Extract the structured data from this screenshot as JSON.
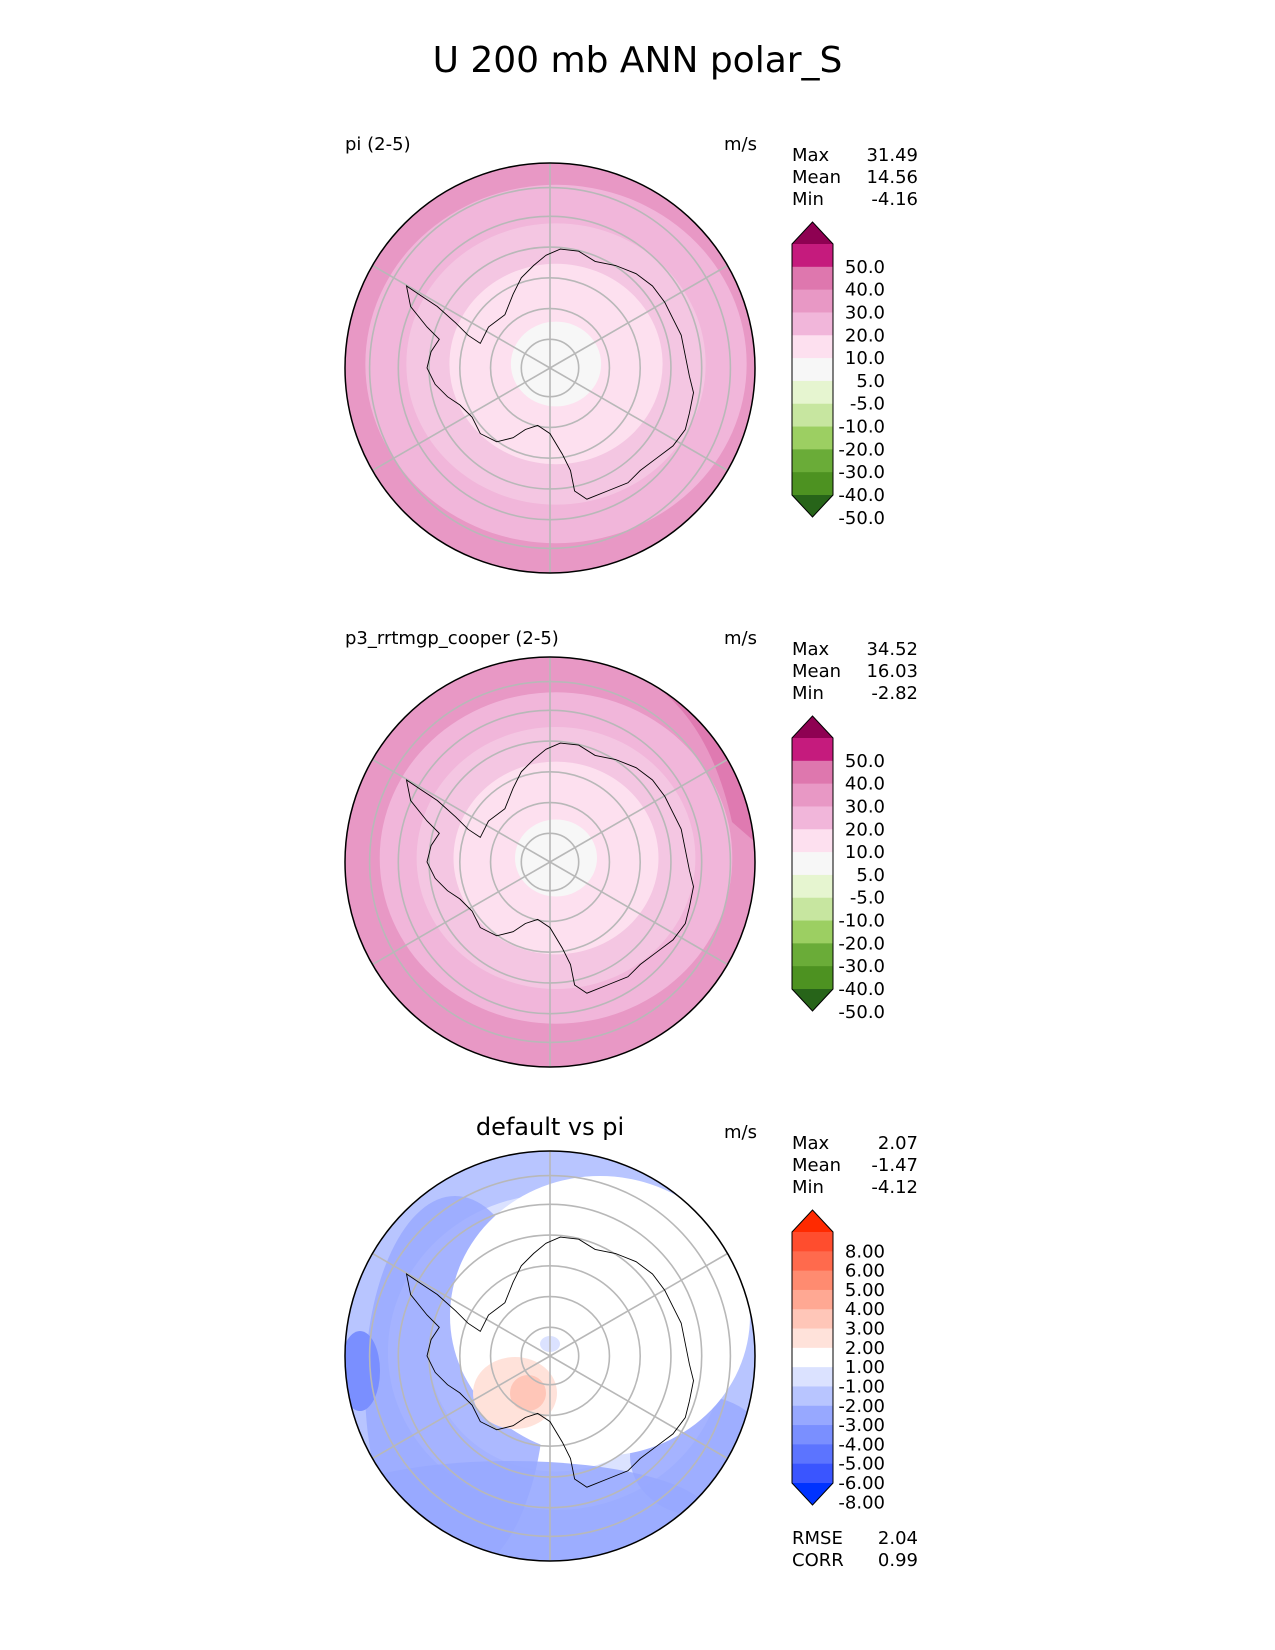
{
  "title": "U 200 mb ANN polar_S",
  "panels": [
    {
      "left_title": "pi (2-5)",
      "center_title": "",
      "units": "m/s",
      "stats": [
        {
          "label": "Max",
          "value": "31.49"
        },
        {
          "label": "Mean",
          "value": "14.56"
        },
        {
          "label": "Min",
          "value": "-4.16"
        }
      ],
      "colorbar": {
        "labels": [
          "50.0",
          "40.0",
          "30.0",
          "20.0",
          "10.0",
          "5.0",
          "-5.0",
          "-10.0",
          "-20.0",
          "-30.0",
          "-40.0",
          "-50.0"
        ],
        "colors": [
          "#8e0152",
          "#c51b7d",
          "#de77ae",
          "#e898c5",
          "#f1b6da",
          "#fde0ef",
          "#f7f7f7",
          "#e6f5d0",
          "#c7e6a0",
          "#9ccf62",
          "#6aac38",
          "#4d9221",
          "#276419"
        ]
      },
      "field": {
        "rings": [
          "#e898c5",
          "#f1b6da",
          "#f4c6e2",
          "#fde0ef",
          "#f7f7f7"
        ],
        "ring_breaks": [
          1.0,
          0.93,
          0.73,
          0.52,
          0.22
        ]
      }
    },
    {
      "left_title": "p3_rrtmgp_cooper (2-5)",
      "center_title": "",
      "units": "m/s",
      "stats": [
        {
          "label": "Max",
          "value": "34.52"
        },
        {
          "label": "Mean",
          "value": "16.03"
        },
        {
          "label": "Min",
          "value": "-2.82"
        }
      ],
      "colorbar": {
        "labels": [
          "50.0",
          "40.0",
          "30.0",
          "20.0",
          "10.0",
          "5.0",
          "-5.0",
          "-10.0",
          "-20.0",
          "-30.0",
          "-40.0",
          "-50.0"
        ],
        "colors": [
          "#8e0152",
          "#c51b7d",
          "#de77ae",
          "#e898c5",
          "#f1b6da",
          "#fde0ef",
          "#f7f7f7",
          "#e6f5d0",
          "#c7e6a0",
          "#9ccf62",
          "#6aac38",
          "#4d9221",
          "#276419"
        ]
      },
      "field": {
        "rings": [
          "#e898c5",
          "#f1b6da",
          "#f4c6e2",
          "#fde0ef",
          "#f7f7f7"
        ],
        "ring_breaks": [
          1.0,
          0.86,
          0.68,
          0.5,
          0.2
        ]
      }
    },
    {
      "left_title": "",
      "center_title": "default vs pi",
      "units": "m/s",
      "stats": [
        {
          "label": "Max",
          "value": "2.07"
        },
        {
          "label": "Mean",
          "value": "-1.47"
        },
        {
          "label": "Min",
          "value": "-4.12"
        }
      ],
      "colorbar": {
        "labels": [
          "8.00",
          "6.00",
          "5.00",
          "4.00",
          "3.00",
          "2.00",
          "1.00",
          "-1.00",
          "-2.00",
          "-3.00",
          "-4.00",
          "-5.00",
          "-6.00",
          "-8.00"
        ],
        "colors": [
          "#ff2a00",
          "#ff4d2e",
          "#ff6a4d",
          "#ff8b70",
          "#ffa893",
          "#ffc6b8",
          "#ffe2da",
          "#ffffff",
          "#dbe2ff",
          "#b8c5ff",
          "#97a8ff",
          "#7a8fff",
          "#5c74ff",
          "#3a55ff",
          "#0033ff"
        ]
      },
      "field": {
        "rings": [
          "#b8c5ff",
          "#dbe2ff",
          "#ffffff"
        ],
        "ring_breaks": [
          1.0,
          0.82,
          0.62
        ]
      },
      "bottom_stats": [
        {
          "label": "RMSE",
          "value": "2.04"
        },
        {
          "label": "CORR",
          "value": "0.99"
        }
      ]
    }
  ],
  "chart_data": [
    {
      "type": "heatmap",
      "projection": "south polar stereographic",
      "title": "pi (2-5)",
      "units": "m/s",
      "stats": {
        "max": 31.49,
        "mean": 14.56,
        "min": -4.16
      },
      "contour_levels": [
        -50,
        -40,
        -30,
        -20,
        -10,
        -5,
        5,
        10,
        20,
        30,
        40,
        50
      ]
    },
    {
      "type": "heatmap",
      "projection": "south polar stereographic",
      "title": "p3_rrtmgp_cooper (2-5)",
      "units": "m/s",
      "stats": {
        "max": 34.52,
        "mean": 16.03,
        "min": -2.82
      },
      "contour_levels": [
        -50,
        -40,
        -30,
        -20,
        -10,
        -5,
        5,
        10,
        20,
        30,
        40,
        50
      ]
    },
    {
      "type": "heatmap",
      "projection": "south polar stereographic",
      "title": "default vs pi",
      "units": "m/s",
      "stats": {
        "max": 2.07,
        "mean": -1.47,
        "min": -4.12,
        "rmse": 2.04,
        "corr": 0.99
      },
      "contour_levels": [
        -8,
        -6,
        -5,
        -4,
        -3,
        -2,
        -1,
        1,
        2,
        3,
        4,
        5,
        6,
        8
      ]
    }
  ]
}
